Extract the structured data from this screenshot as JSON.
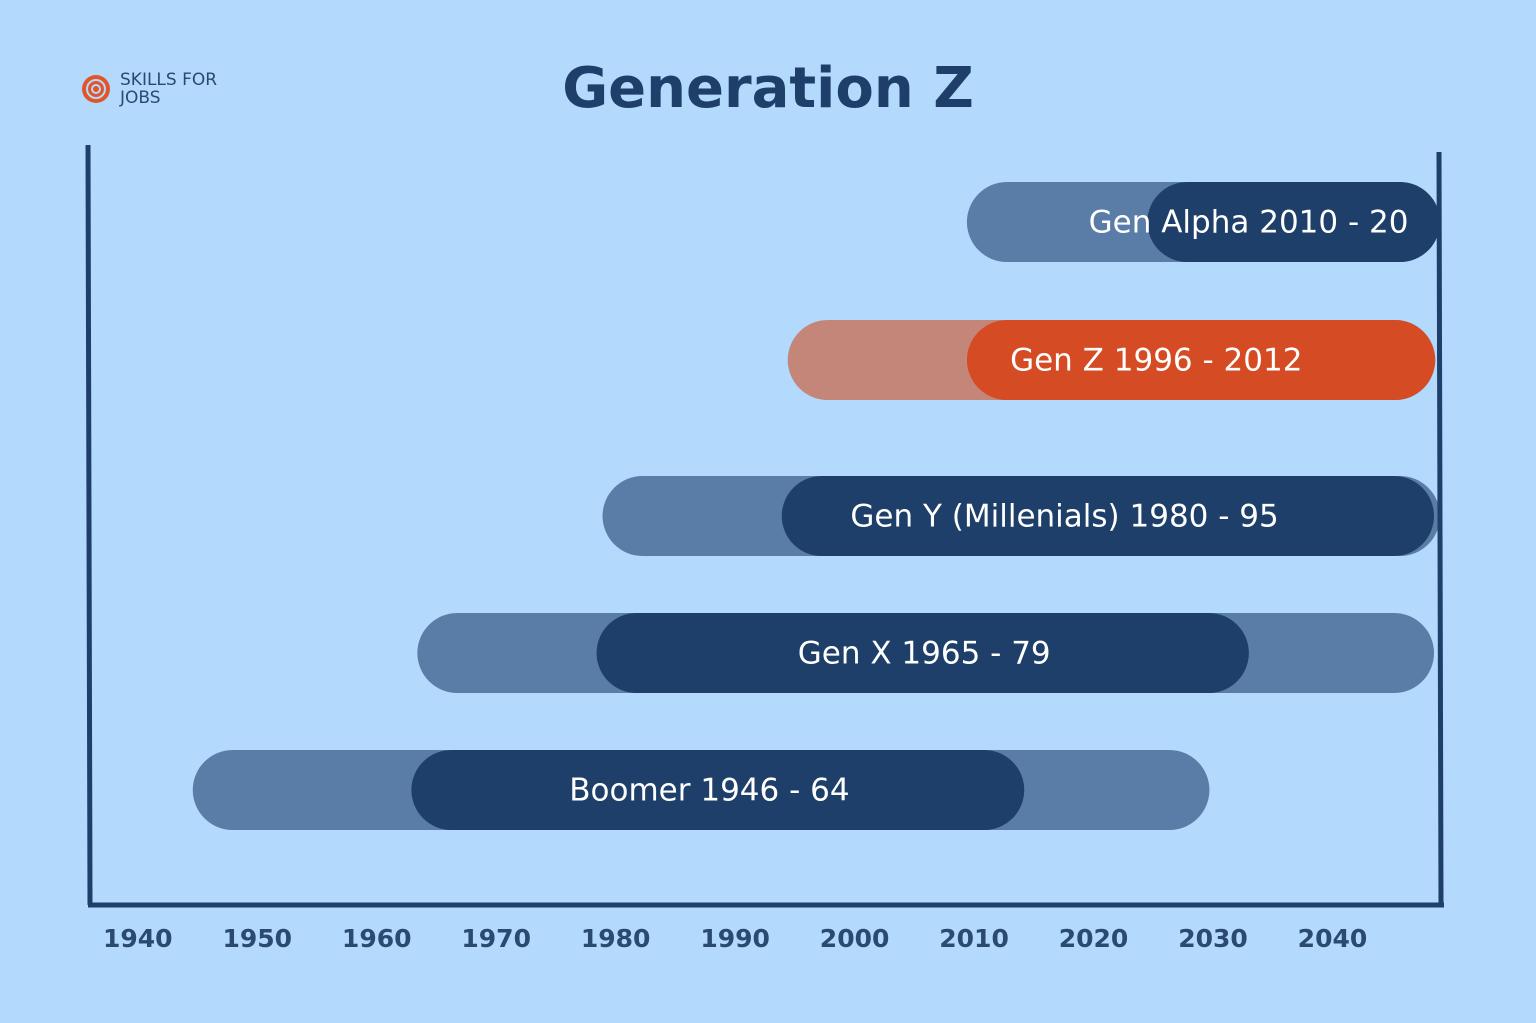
{
  "logo": {
    "lines": [
      "SKILLS FOR",
      "JOBS"
    ]
  },
  "chart_data": {
    "type": "timeline",
    "title": "Generation Z",
    "xlim": [
      1936,
      2049
    ],
    "xticks": [
      1940,
      1950,
      1960,
      1970,
      1980,
      1990,
      2000,
      2010,
      2020,
      2030,
      2040
    ],
    "bars": [
      {
        "label": "Gen Alpha  2010 - 20",
        "range": [
          2009.4,
          2049
        ],
        "core": [
          2024.5,
          2049
        ],
        "color": "#5a7da7",
        "core_color": "#1e3f69"
      },
      {
        "label": "Gen Z  1996 - 2012",
        "range": [
          1994.4,
          2048.6
        ],
        "core": [
          2009.4,
          2048.6
        ],
        "color": "#c5867a",
        "core_color": "#d44b24"
      },
      {
        "label": "Gen Y (Millenials) 1980 - 95",
        "range": [
          1978.9,
          2049
        ],
        "core": [
          1993.9,
          2048.5
        ],
        "color": "#5a7da7",
        "core_color": "#1e3f69"
      },
      {
        "label": "Gen X 1965 - 79",
        "range": [
          1963.4,
          2048.5
        ],
        "core": [
          1978.4,
          2033
        ],
        "color": "#5a7da7",
        "core_color": "#1e3f69"
      },
      {
        "label": "Boomer 1946 - 64",
        "range": [
          1944.6,
          2029.7
        ],
        "core": [
          1962.9,
          2014.2
        ],
        "color": "#5a7da7",
        "core_color": "#1e3f69"
      }
    ]
  }
}
